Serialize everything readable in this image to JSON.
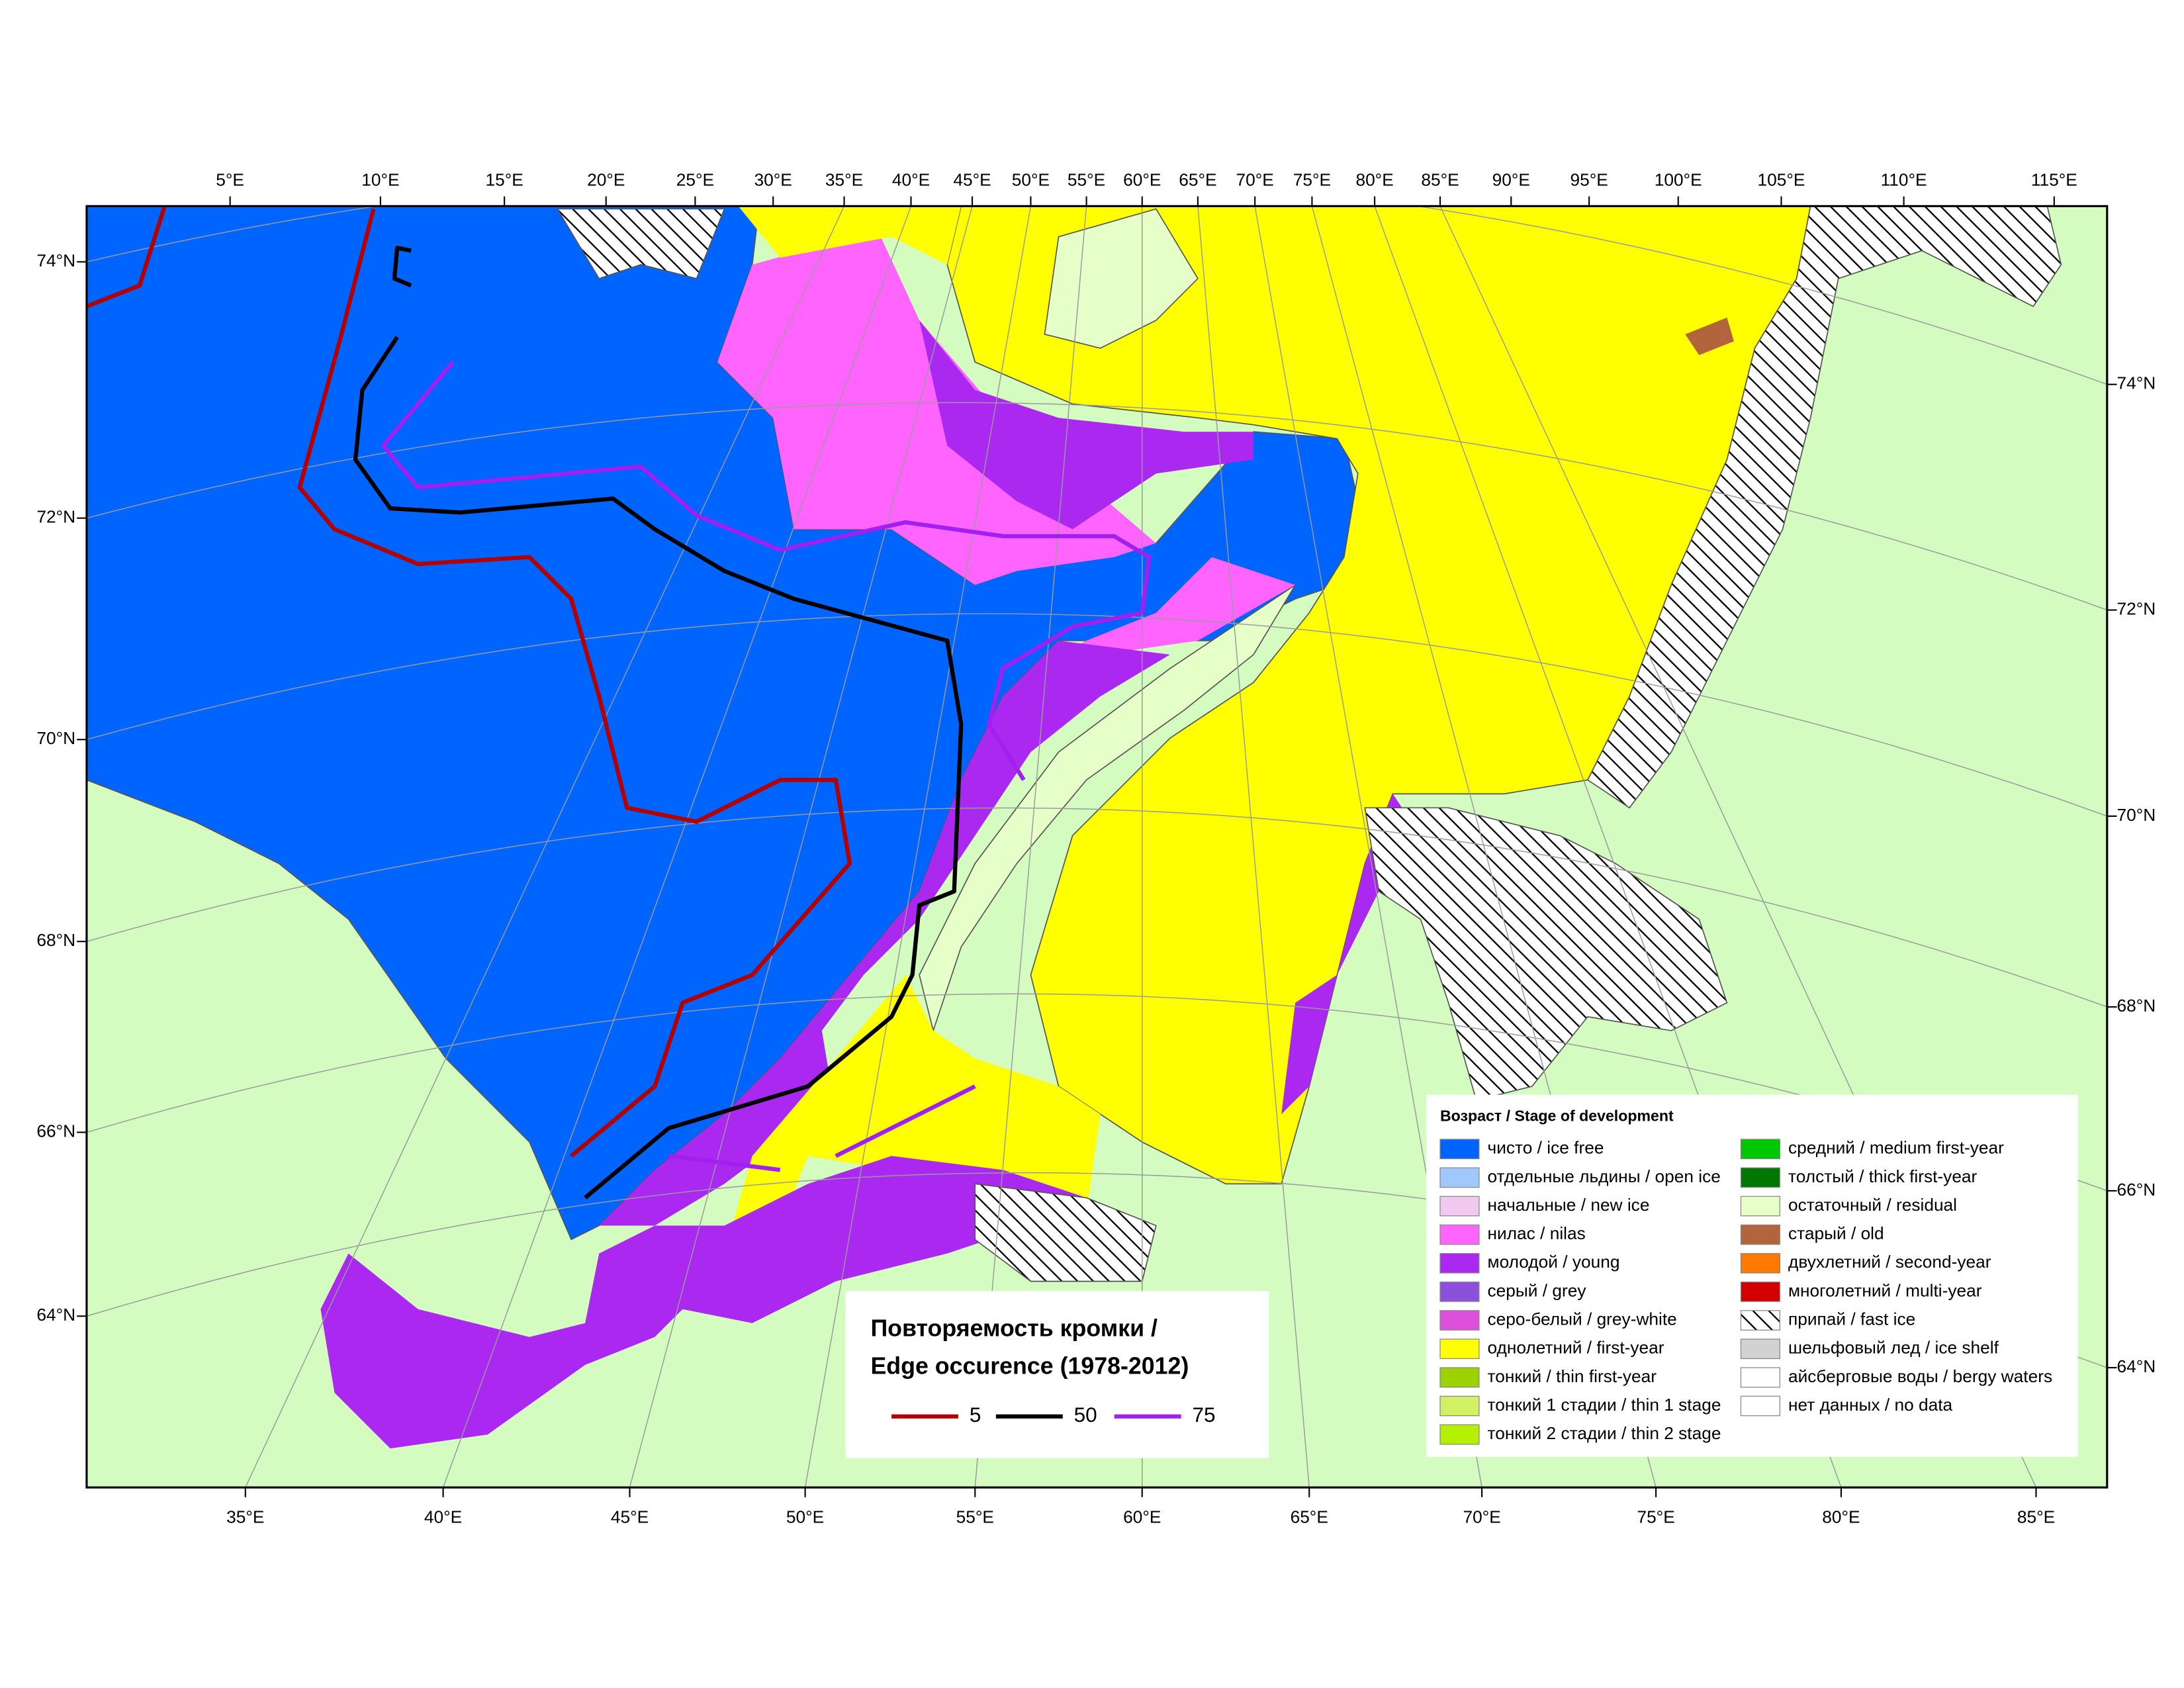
{
  "map": {
    "top_lon_labels": [
      "5°E",
      "10°E",
      "15°E",
      "20°E",
      "25°E",
      "30°E",
      "35°E",
      "40°E",
      "45°E",
      "50°E",
      "55°E",
      "60°E",
      "65°E",
      "70°E",
      "75°E",
      "80°E",
      "85°E",
      "90°E",
      "95°E",
      "100°E",
      "105°E",
      "110°E",
      "115°E"
    ],
    "bottom_lon_labels": [
      "35°E",
      "40°E",
      "45°E",
      "50°E",
      "55°E",
      "60°E",
      "65°E",
      "70°E",
      "75°E",
      "80°E",
      "85°E"
    ],
    "left_lat_labels": [
      "74°N",
      "72°N",
      "70°N",
      "68°N",
      "66°N",
      "64°N"
    ],
    "right_lat_labels": [
      "74°N",
      "72°N",
      "70°N",
      "68°N",
      "66°N",
      "64°N"
    ]
  },
  "legend": {
    "title": "Возраст / Stage of development",
    "items": [
      {
        "label": "чисто / ice free",
        "color": "#0064ff"
      },
      {
        "label": "отдельные льдины / open ice",
        "color": "#a0c8ff"
      },
      {
        "label": "начальные / new ice",
        "color": "#f0c8f0"
      },
      {
        "label": "нилас / nilas",
        "color": "#ff64ff"
      },
      {
        "label": "молодой / young",
        "color": "#aa28f0"
      },
      {
        "label": "серый / grey",
        "color": "#8c50dc"
      },
      {
        "label": "серо-белый / grey-white",
        "color": "#dc50dc"
      },
      {
        "label": "однолетний / first-year",
        "color": "#ffff00"
      },
      {
        "label": "тонкий / thin first-year",
        "color": "#9bd200"
      },
      {
        "label": "тонкий 1 стадии / thin 1 stage",
        "color": "#d2f064"
      },
      {
        "label": "тонкий 2 стадии / thin 2 stage",
        "color": "#b4f000"
      },
      {
        "label": "средний / medium first-year",
        "color": "#00c800"
      },
      {
        "label": "толстый / thick first-year",
        "color": "#007800"
      },
      {
        "label": "остаточный / residual",
        "color": "#e6ffc8"
      },
      {
        "label": "старый / old",
        "color": "#b4643c"
      },
      {
        "label": "двухлетний / second-year",
        "color": "#ff7800"
      },
      {
        "label": "многолетний / multi-year",
        "color": "#d20000"
      },
      {
        "label": "припай / fast ice"
      },
      {
        "label": "шельфовый лед / ice shelf",
        "color": "#d2d2d2"
      },
      {
        "label": "айсберговые воды / bergy waters",
        "color": "#ffffff"
      },
      {
        "label": "нет данных / no data",
        "color": "#ffffff"
      }
    ]
  },
  "edge_legend": {
    "title": [
      "Повторяемость кромки /",
      "Edge occurence (1978-2012)"
    ],
    "items": [
      {
        "label": "5",
        "color": "#b40000"
      },
      {
        "label": "50",
        "color": "#000000"
      },
      {
        "label": "75",
        "color": "#a020f0"
      }
    ]
  }
}
